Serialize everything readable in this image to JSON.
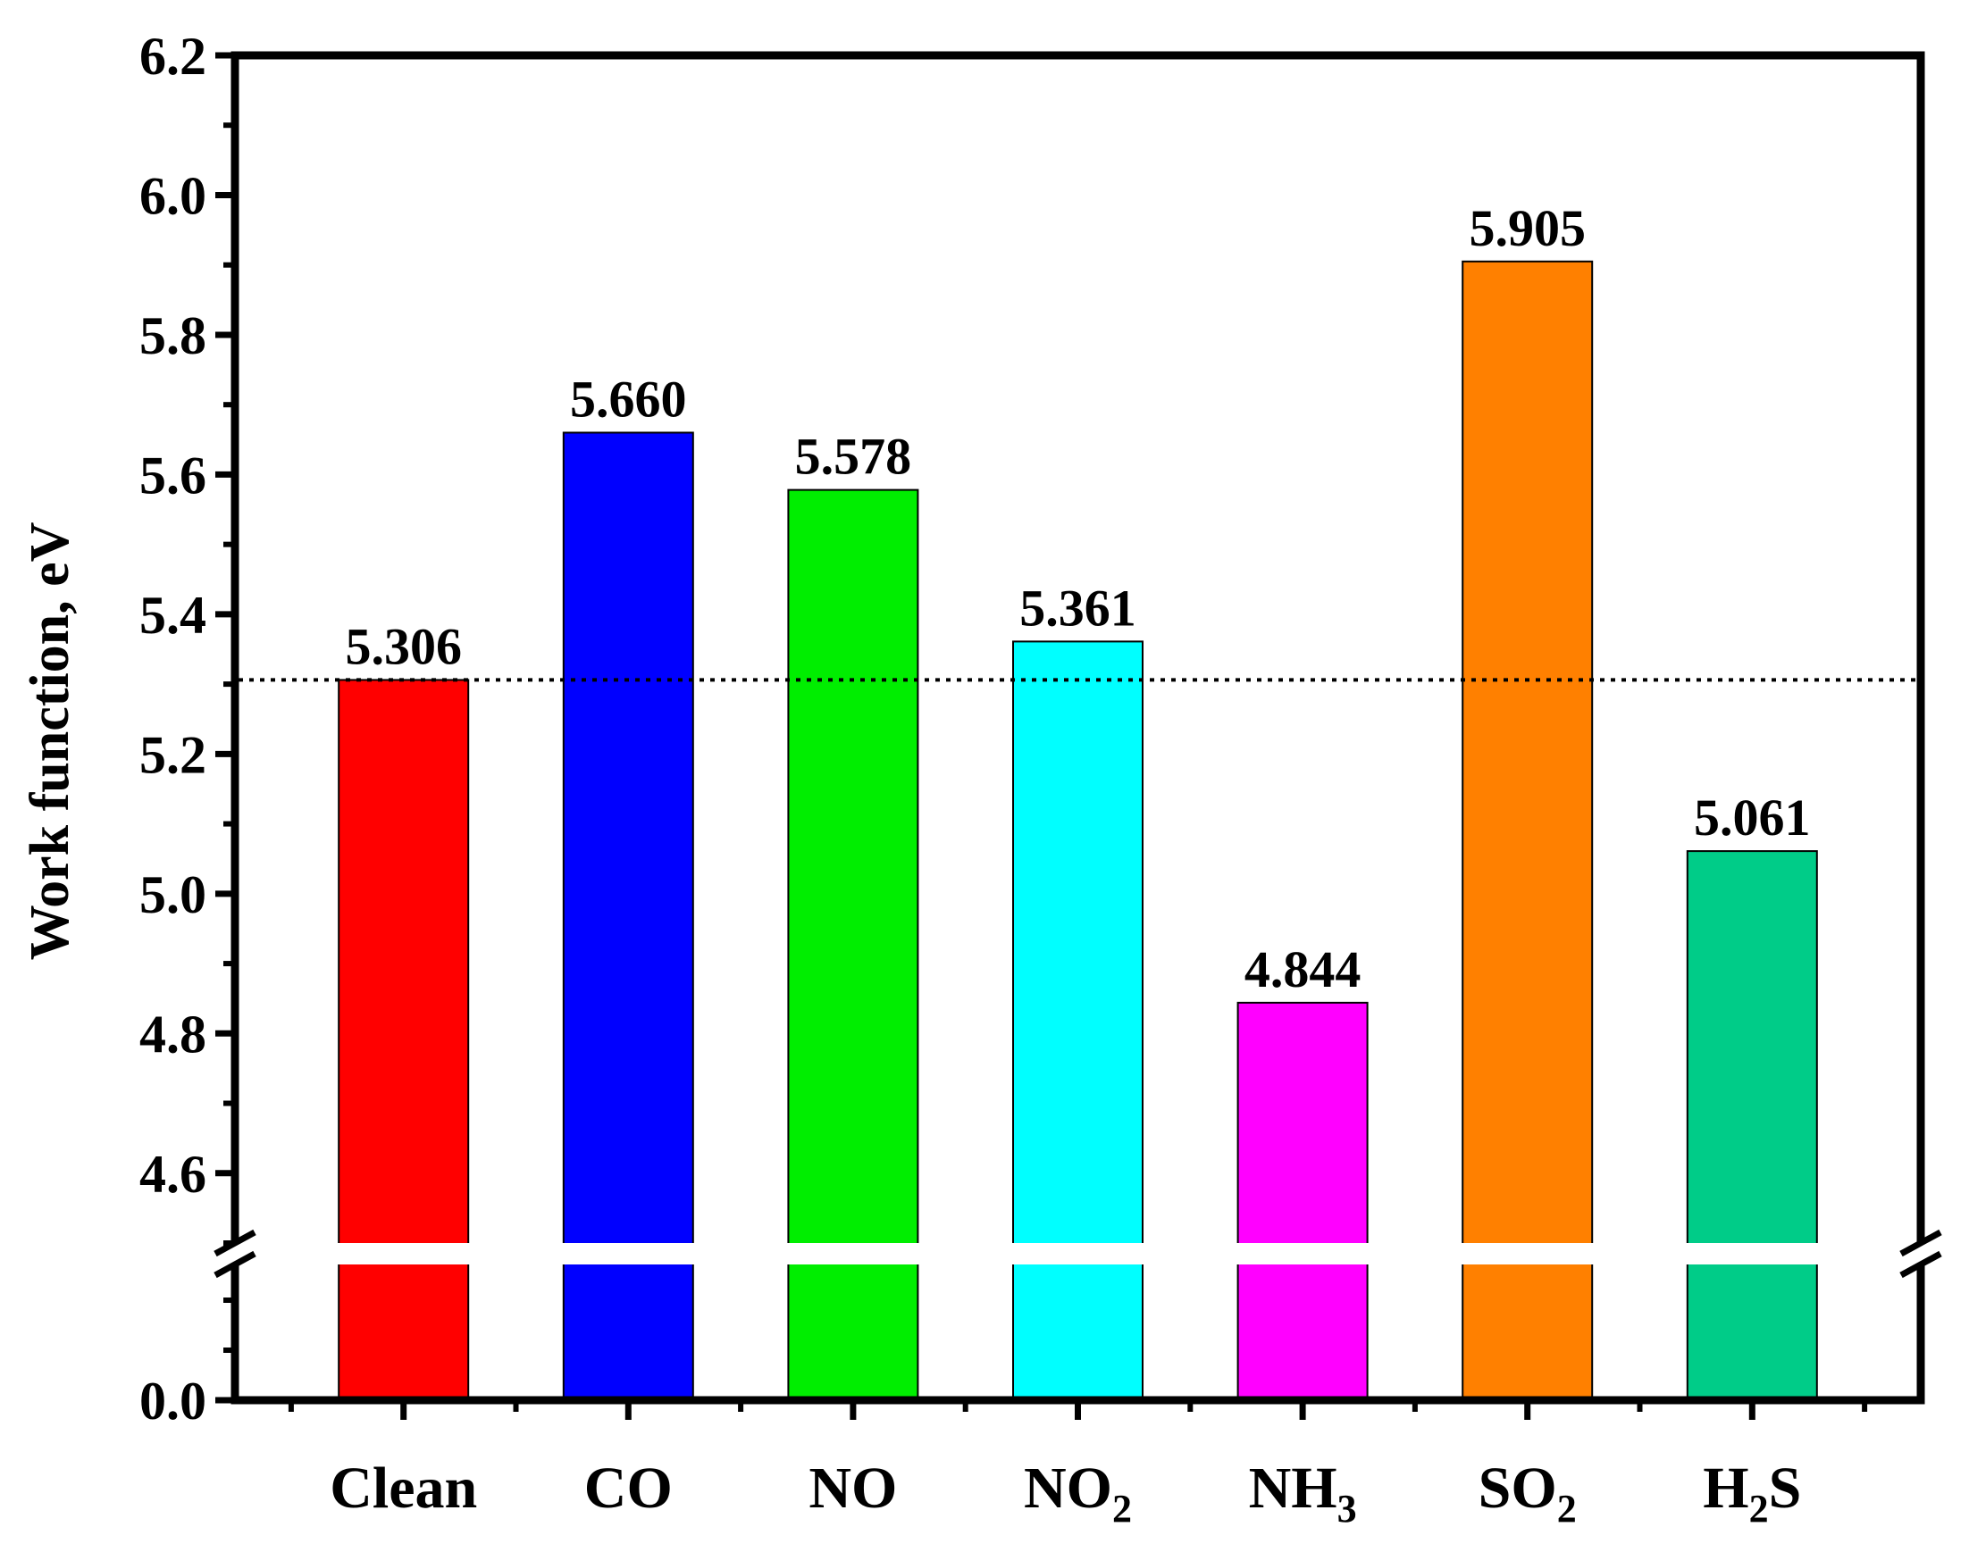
{
  "chart_data": {
    "type": "bar",
    "title": "",
    "xlabel": "",
    "ylabel": "Work function, eV",
    "categories": [
      {
        "base": "Clean",
        "sub": ""
      },
      {
        "base": "CO",
        "sub": ""
      },
      {
        "base": "NO",
        "sub": ""
      },
      {
        "base": "NO",
        "sub": "2"
      },
      {
        "base": "NH",
        "sub": "3"
      },
      {
        "base": "SO",
        "sub": "2"
      },
      {
        "base": "H",
        "sub": "2",
        "after": "S"
      }
    ],
    "values": [
      5.306,
      5.66,
      5.578,
      5.361,
      4.844,
      5.905,
      5.061
    ],
    "value_labels": [
      "5.306",
      "5.660",
      "5.578",
      "5.361",
      "4.844",
      "5.905",
      "5.061"
    ],
    "colors": [
      "#ff0000",
      "#0000ff",
      "#00ee00",
      "#00ffff",
      "#ff00ff",
      "#ff8000",
      "#00cc88"
    ],
    "ylim_upper": [
      4.5,
      6.2
    ],
    "ylim_lower": [
      0.0,
      0.1
    ],
    "axis_break": true,
    "yticks_upper": [
      "4.6",
      "4.8",
      "5.0",
      "5.2",
      "5.4",
      "5.6",
      "5.8",
      "6.0",
      "6.2"
    ],
    "yticks_lower": [
      "0.0"
    ],
    "reference_line": {
      "y": 5.306,
      "style": "dotted"
    },
    "grid": false,
    "legend": "none"
  }
}
